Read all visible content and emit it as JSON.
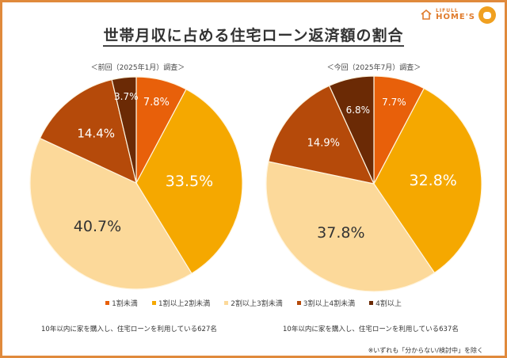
{
  "title": "世帯月収に占める住宅ローン返済額の割合",
  "logo": {
    "line1": "LIFULL",
    "line2": "HOME'S"
  },
  "chart_data": [
    {
      "type": "pie",
      "title": "＜前回（2025年1月）調査＞",
      "categories": [
        "1割未満",
        "1割以上2割未満",
        "2割以上3割未満",
        "3割以上4割未満",
        "4割以上"
      ],
      "values": [
        7.8,
        33.5,
        40.7,
        14.4,
        3.7
      ],
      "labels": [
        "7.8%",
        "33.5%",
        "40.7%",
        "14.4%",
        "3.7%"
      ],
      "note": "10年以内に家を購入し、住宅ローンを利用している627名"
    },
    {
      "type": "pie",
      "title": "＜今回（2025年7月）調査＞",
      "categories": [
        "1割未満",
        "1割以上2割未満",
        "2割以上3割未満",
        "3割以上4割未満",
        "4割以上"
      ],
      "values": [
        7.7,
        32.8,
        37.8,
        14.9,
        6.8
      ],
      "labels": [
        "7.7%",
        "32.8%",
        "37.8%",
        "14.9%",
        "6.8%"
      ],
      "note": "10年以内に家を購入し、住宅ローンを利用している637名"
    }
  ],
  "colors": [
    "#e8600a",
    "#f5a800",
    "#fcd99a",
    "#b54a0a",
    "#6b2a05"
  ],
  "label_colors": [
    "#ffffff",
    "#ffffff",
    "#333333",
    "#ffffff",
    "#ffffff"
  ],
  "legend": [
    "1割未満",
    "1割以上2割未満",
    "2割以上3割未満",
    "3割以上4割未満",
    "4割以上"
  ],
  "footnote": "※いずれも「分からない/検討中」を除く"
}
